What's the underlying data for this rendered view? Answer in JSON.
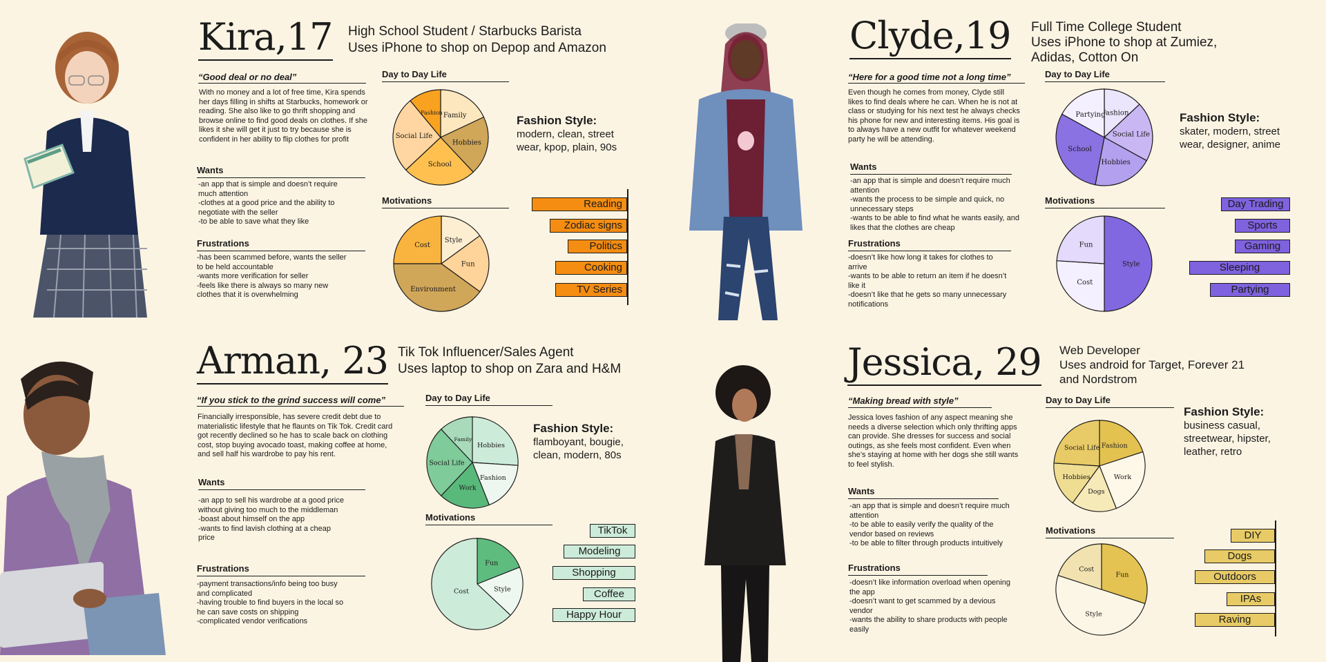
{
  "personas": [
    {
      "id": "kira",
      "name": "Kira,17",
      "headline": [
        "High School Student / Starbucks Barista",
        "Uses iPhone to shop on Depop and Amazon"
      ],
      "quote": "“Good deal or no deal”",
      "bio": "With no money and a lot of free time, Kira spends her days filling in shifts at Starbucks, homework or reading. She also like to go thrift shopping and browse online to find good deals on clothes. If she likes it she will get it just to try because she is confident in her ability to flip clothes for profit",
      "wants_title": "Wants",
      "wants": [
        "-an app that is simple and doesn’t require much attention",
        "-clothes at a good price and the ability to negotiate with the seller",
        "-to be able to save what they like"
      ],
      "frustrations_title": "Frustrations",
      "frustrations": [
        "-has been scammed before, wants the seller to be held accountable",
        "-wants more verification for seller",
        "-feels like there is always so many new clothes that it is overwhelming"
      ],
      "fashion_title": "Fashion Style:",
      "fashion": "modern, clean, street wear, kpop, plain, 90s",
      "interests": [
        "Reading",
        "Zodiac signs",
        "Politics",
        "Cooking",
        "TV Series"
      ]
    },
    {
      "id": "clyde",
      "name": "Clyde,19",
      "headline": [
        "Full Time College Student",
        "Uses iPhone to shop at Zumiez,",
        "Adidas, Cotton On"
      ],
      "quote": "“Here for a good time not a long time”",
      "bio": "Even though he comes from money, Clyde still likes to find deals where he can. When he is not at class or studying for his next test he always checks his phone for new and interesting items. His goal is to always have a new outfit for whatever weekend party he will be attending.",
      "wants_title": "Wants",
      "wants": [
        "-an app that is simple and doesn’t require much attention",
        "-wants the process to be simple and quick, no unnecessary steps",
        "-wants to be able to find what he wants easily, and likes that the clothes are cheap"
      ],
      "frustrations_title": "Frustrations",
      "frustrations": [
        "-doesn’t like how long it takes for clothes to arrive",
        "-wants to be able to return an item if he doesn’t like it",
        "-doesn’t like that he gets so many unnecessary notifications"
      ],
      "fashion_title": "Fashion Style:",
      "fashion": "skater, modern, street wear, designer, anime",
      "interests": [
        "Day Trading",
        "Sports",
        "Gaming",
        "Sleeping",
        "Partying"
      ]
    },
    {
      "id": "arman",
      "name": "Arman, 23",
      "headline": [
        "Tik Tok Influencer/Sales Agent",
        "Uses laptop to shop on Zara and H&M"
      ],
      "quote": "“If you stick to the grind success will come”",
      "bio": "Financially irresponsible, has severe credit debt due to materialistic lifestyle that he flaunts on Tik Tok.  Credit card got recently declined so he has to scale back on clothing cost, stop buying avocado toast, making coffee at home, and sell half his wardrobe to pay his rent.",
      "wants_title": "Wants",
      "wants": [
        "-an app to sell his wardrobe at a good price without giving too much to the middleman",
        "-boast about himself on the app",
        "-wants to find lavish clothing at a cheap price"
      ],
      "frustrations_title": "Frustrations",
      "frustrations": [
        "-payment transactions/info being too busy and complicated",
        "-having trouble to find buyers in the local so he can save costs on shipping",
        "-complicated vendor verifications"
      ],
      "fashion_title": "Fashion Style:",
      "fashion": "flamboyant, bougie, clean, modern, 80s",
      "interests": [
        "TikTok",
        "Modeling",
        "Shopping",
        "Coffee",
        "Happy Hour"
      ]
    },
    {
      "id": "jessica",
      "name": "Jessica, 29",
      "headline": [
        "Web Developer",
        "Uses android for Target, Forever 21",
        "and Nordstrom"
      ],
      "quote": "“Making bread with style”",
      "bio": "Jessica loves fashion of any aspect meaning she needs a diverse selection which only thrifting apps can provide.  She dresses for success and social outings, as she feels most confident.  Even when she’s staying at home with her dogs she still wants to feel stylish.",
      "wants_title": "Wants",
      "wants": [
        "-an app that is simple and doesn’t require much attention",
        "-to be able to easily verify the quality of the vendor based on reviews",
        "-to be able to filter through products intuitively"
      ],
      "frustrations_title": "Frustrations",
      "frustrations": [
        "-doesn’t like information overload when opening the app",
        "-doesn’t want to get scammed by a devious vendor",
        "-wants the ability to share products with people easily"
      ],
      "fashion_title": "Fashion Style:",
      "fashion": "business casual, streetwear, hipster, leather, retro",
      "interests": [
        "DIY",
        "Dogs",
        "Outdoors",
        "IPAs",
        "Raving"
      ]
    }
  ],
  "chart_titles": {
    "day": "Day to Day Life",
    "motivations": "Motivations"
  },
  "chart_data": [
    {
      "id": "kira-day",
      "type": "pie",
      "title": "Day to Day Life",
      "start_deg": -90,
      "labels": [
        "Family",
        "Hobbies",
        "School",
        "Social Life",
        "Fashion"
      ],
      "values": [
        18,
        20,
        25,
        26,
        11
      ],
      "colors": [
        "#fde7be",
        "#d0a659",
        "#ffc04f",
        "#ffd6a1",
        "#f9a21f"
      ]
    },
    {
      "id": "kira-mot",
      "type": "pie",
      "title": "Motivations",
      "start_deg": -90,
      "labels": [
        "Style",
        "Fun",
        "Environment",
        "Cost"
      ],
      "values": [
        15,
        20,
        40,
        25
      ],
      "colors": [
        "#fdeed2",
        "#ffd49a",
        "#d0a659",
        "#f9b43f"
      ]
    },
    {
      "id": "clyde-day",
      "type": "pie",
      "title": "Day to Day Life",
      "start_deg": -90,
      "labels": [
        "Fashion",
        "Social Life",
        "Hobbies",
        "School",
        "Partying"
      ],
      "values": [
        13,
        20,
        20,
        30,
        17
      ],
      "colors": [
        "#ece6fd",
        "#c9b7f4",
        "#b3a1ef",
        "#8a72e2",
        "#f5f0ff"
      ]
    },
    {
      "id": "clyde-mot",
      "type": "pie",
      "title": "Motivations",
      "start_deg": -90,
      "labels": [
        "Style",
        "Cost",
        "Fun"
      ],
      "values": [
        50,
        26,
        24
      ],
      "colors": [
        "#8268e0",
        "#f4f0ff",
        "#e3dafc"
      ]
    },
    {
      "id": "arman-day",
      "type": "pie",
      "title": "Day to Day Life",
      "start_deg": -90,
      "labels": [
        "Hobbies",
        "Fashion",
        "Work",
        "Social Life",
        "Family"
      ],
      "values": [
        26,
        18,
        18,
        26,
        12
      ],
      "colors": [
        "#cdebd9",
        "#edf7f0",
        "#59b97b",
        "#7fcb99",
        "#a9dbbb"
      ]
    },
    {
      "id": "arman-mot",
      "type": "pie",
      "title": "Motivations",
      "start_deg": -90,
      "labels": [
        "Fun",
        "Style",
        "Cost"
      ],
      "values": [
        19,
        18,
        63
      ],
      "colors": [
        "#5fbc7f",
        "#eef8f1",
        "#cdebd9"
      ]
    },
    {
      "id": "jessica-day",
      "type": "pie",
      "title": "Day to Day Life",
      "start_deg": -90,
      "labels": [
        "Fashion",
        "Work",
        "Dogs",
        "Hobbies",
        "Social Life"
      ],
      "values": [
        20,
        24,
        16,
        16,
        24
      ],
      "colors": [
        "#e4c250",
        "#fdf8e8",
        "#f7eab9",
        "#efdd92",
        "#e8cb66"
      ]
    },
    {
      "id": "jessica-mot",
      "type": "pie",
      "title": "Motivations",
      "start_deg": -90,
      "labels": [
        "Fun",
        "Style",
        "Cost"
      ],
      "values": [
        30,
        50,
        20
      ],
      "colors": [
        "#e4c352",
        "#fcf6e6",
        "#f1e2b0"
      ]
    }
  ]
}
